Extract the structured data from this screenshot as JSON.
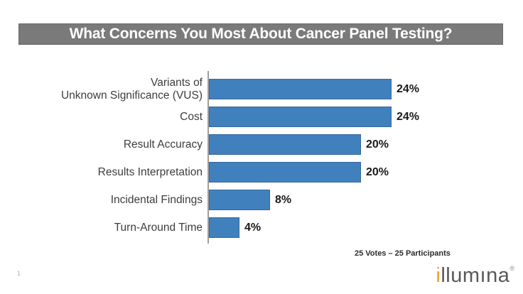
{
  "header": {
    "title": "What Concerns You Most About Cancer Panel Testing?",
    "band_color": "#7a7a7a",
    "title_color": "#ffffff"
  },
  "chart_data": {
    "type": "bar",
    "orientation": "horizontal",
    "title": "What Concerns You Most About Cancer Panel Testing?",
    "categories": [
      "Variants of\nUnknown Significance (VUS)",
      "Cost",
      "Result Accuracy",
      "Results Interpretation",
      "Incidental Findings",
      "Turn-Around Time"
    ],
    "values": [
      24,
      24,
      20,
      20,
      8,
      4
    ],
    "value_labels": [
      "24%",
      "24%",
      "20%",
      "20%",
      "8%",
      "4%"
    ],
    "unit": "percent",
    "xlim": [
      0,
      32
    ],
    "gridlines": false,
    "legend": false,
    "bar_color": "#4081bd",
    "bar_border_color": "#38689f",
    "axis_color": "#9e9e9e",
    "note": "25 Votes – 25 Participants"
  },
  "footer": {
    "page_number": "1",
    "logo": {
      "brand": "illumina",
      "first_letter": "i",
      "rest": "llumına",
      "mark": "®",
      "orange": "#f5a028",
      "gray": "#58595b"
    }
  }
}
